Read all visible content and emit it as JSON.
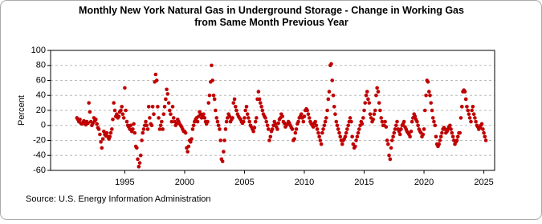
{
  "chart_data": {
    "type": "scatter",
    "title": "Monthly New York Natural Gas in Underground Storage - Change in Working Gas from Same Month Previous Year",
    "y_label": "Percent",
    "source": "Source: U.S. Energy Information Administration",
    "color": "#c00000",
    "grid": true,
    "xlim": [
      1988.8,
      2025.9
    ],
    "xticks": [
      1995,
      2000,
      2005,
      2010,
      2015,
      2020,
      2025
    ],
    "ylim": [
      -60,
      100
    ],
    "yticks": [
      -60,
      -40,
      -20,
      0,
      20,
      40,
      60,
      80,
      100
    ],
    "x": [
      1991,
      1991.08,
      1991.17,
      1991.25,
      1991.33,
      1991.42,
      1991.5,
      1991.58,
      1991.67,
      1991.75,
      1991.83,
      1991.92,
      1992,
      1992.08,
      1992.17,
      1992.25,
      1992.33,
      1992.42,
      1992.5,
      1992.58,
      1992.67,
      1992.75,
      1992.83,
      1992.92,
      1993,
      1993.08,
      1993.17,
      1993.25,
      1993.33,
      1993.42,
      1993.5,
      1993.58,
      1993.67,
      1993.75,
      1993.83,
      1993.92,
      1994,
      1994.08,
      1994.17,
      1994.25,
      1994.33,
      1994.42,
      1994.5,
      1994.58,
      1994.67,
      1994.75,
      1994.83,
      1994.92,
      1995,
      1995.08,
      1995.17,
      1995.25,
      1995.33,
      1995.42,
      1995.5,
      1995.58,
      1995.67,
      1995.75,
      1995.83,
      1995.92,
      1996,
      1996.08,
      1996.17,
      1996.25,
      1996.33,
      1996.42,
      1996.5,
      1996.58,
      1996.67,
      1996.75,
      1996.83,
      1996.92,
      1997,
      1997.08,
      1997.17,
      1997.25,
      1997.33,
      1997.42,
      1997.5,
      1997.58,
      1997.67,
      1997.75,
      1997.83,
      1997.92,
      1998,
      1998.08,
      1998.17,
      1998.25,
      1998.33,
      1998.42,
      1998.5,
      1998.58,
      1998.67,
      1998.75,
      1998.83,
      1998.92,
      1999,
      1999.08,
      1999.17,
      1999.25,
      1999.33,
      1999.42,
      1999.5,
      1999.58,
      1999.67,
      1999.75,
      1999.83,
      1999.92,
      2000,
      2000.08,
      2000.17,
      2000.25,
      2000.33,
      2000.42,
      2000.5,
      2000.58,
      2000.67,
      2000.75,
      2000.83,
      2000.92,
      2001,
      2001.08,
      2001.17,
      2001.25,
      2001.33,
      2001.42,
      2001.5,
      2001.58,
      2001.67,
      2001.75,
      2001.83,
      2001.92,
      2002,
      2002.08,
      2002.17,
      2002.25,
      2002.33,
      2002.42,
      2002.5,
      2002.58,
      2002.67,
      2002.75,
      2002.83,
      2002.92,
      2003,
      2003.08,
      2003.17,
      2003.25,
      2003.33,
      2003.42,
      2003.5,
      2003.58,
      2003.67,
      2003.75,
      2003.83,
      2003.92,
      2004,
      2004.08,
      2004.17,
      2004.25,
      2004.33,
      2004.42,
      2004.5,
      2004.58,
      2004.67,
      2004.75,
      2004.83,
      2004.92,
      2005,
      2005.08,
      2005.17,
      2005.25,
      2005.33,
      2005.42,
      2005.5,
      2005.58,
      2005.67,
      2005.75,
      2005.83,
      2005.92,
      2006,
      2006.08,
      2006.17,
      2006.25,
      2006.33,
      2006.42,
      2006.5,
      2006.58,
      2006.67,
      2006.75,
      2006.83,
      2006.92,
      2007,
      2007.08,
      2007.17,
      2007.25,
      2007.33,
      2007.42,
      2007.5,
      2007.58,
      2007.67,
      2007.75,
      2007.83,
      2007.92,
      2008,
      2008.08,
      2008.17,
      2008.25,
      2008.33,
      2008.42,
      2008.5,
      2008.58,
      2008.67,
      2008.75,
      2008.83,
      2008.92,
      2009,
      2009.08,
      2009.17,
      2009.25,
      2009.33,
      2009.42,
      2009.5,
      2009.58,
      2009.67,
      2009.75,
      2009.83,
      2009.92,
      2010,
      2010.08,
      2010.17,
      2010.25,
      2010.33,
      2010.42,
      2010.5,
      2010.58,
      2010.67,
      2010.75,
      2010.83,
      2010.92,
      2011,
      2011.08,
      2011.17,
      2011.25,
      2011.33,
      2011.42,
      2011.5,
      2011.58,
      2011.67,
      2011.75,
      2011.83,
      2011.92,
      2012,
      2012.08,
      2012.17,
      2012.25,
      2012.33,
      2012.42,
      2012.5,
      2012.58,
      2012.67,
      2012.75,
      2012.83,
      2012.92,
      2013,
      2013.08,
      2013.17,
      2013.25,
      2013.33,
      2013.42,
      2013.5,
      2013.58,
      2013.67,
      2013.75,
      2013.83,
      2013.92,
      2014,
      2014.08,
      2014.17,
      2014.25,
      2014.33,
      2014.42,
      2014.5,
      2014.58,
      2014.67,
      2014.75,
      2014.83,
      2014.92,
      2015,
      2015.08,
      2015.17,
      2015.25,
      2015.33,
      2015.42,
      2015.5,
      2015.58,
      2015.67,
      2015.75,
      2015.83,
      2015.92,
      2016,
      2016.08,
      2016.17,
      2016.25,
      2016.33,
      2016.42,
      2016.5,
      2016.58,
      2016.67,
      2016.75,
      2016.83,
      2016.92,
      2017,
      2017.08,
      2017.17,
      2017.25,
      2017.33,
      2017.42,
      2017.5,
      2017.58,
      2017.67,
      2017.75,
      2017.83,
      2017.92,
      2018,
      2018.08,
      2018.17,
      2018.25,
      2018.33,
      2018.42,
      2018.5,
      2018.58,
      2018.67,
      2018.75,
      2018.83,
      2018.92,
      2019,
      2019.08,
      2019.17,
      2019.25,
      2019.33,
      2019.42,
      2019.5,
      2019.58,
      2019.67,
      2019.75,
      2019.83,
      2019.92,
      2020,
      2020.08,
      2020.17,
      2020.25,
      2020.33,
      2020.42,
      2020.5,
      2020.58,
      2020.67,
      2020.75,
      2020.83,
      2020.92,
      2021,
      2021.08,
      2021.17,
      2021.25,
      2021.33,
      2021.42,
      2021.5,
      2021.58,
      2021.67,
      2021.75,
      2021.83,
      2021.92,
      2022,
      2022.08,
      2022.17,
      2022.25,
      2022.33,
      2022.42,
      2022.5,
      2022.58,
      2022.67,
      2022.75,
      2022.83,
      2022.92,
      2023,
      2023.08,
      2023.17,
      2023.25,
      2023.33,
      2023.42,
      2023.5,
      2023.58,
      2023.67,
      2023.75,
      2023.83,
      2023.92,
      2024,
      2024.08,
      2024.17,
      2024.25,
      2024.33,
      2024.42,
      2024.5,
      2024.58,
      2024.67,
      2024.75,
      2024.83,
      2024.92,
      2025,
      2025.08,
      2025.17
    ],
    "values": [
      10,
      8,
      5,
      8,
      3,
      2,
      4,
      6,
      2,
      1,
      5,
      3,
      30,
      18,
      5,
      0,
      3,
      10,
      6,
      8,
      2,
      -3,
      -5,
      -12,
      -22,
      -30,
      -18,
      -8,
      -12,
      -14,
      -10,
      -15,
      -18,
      -15,
      -10,
      -5,
      8,
      30,
      20,
      12,
      15,
      10,
      12,
      18,
      20,
      25,
      15,
      10,
      50,
      20,
      5,
      0,
      -2,
      -5,
      0,
      -8,
      -5,
      2,
      -10,
      -28,
      -30,
      -45,
      -55,
      -50,
      -40,
      -20,
      -10,
      -5,
      0,
      5,
      0,
      -5,
      25,
      10,
      2,
      0,
      25,
      15,
      58,
      68,
      60,
      25,
      10,
      -5,
      0,
      5,
      -5,
      15,
      25,
      35,
      48,
      42,
      30,
      20,
      15,
      5,
      25,
      10,
      5,
      0,
      3,
      8,
      5,
      2,
      0,
      -2,
      -5,
      -8,
      -8,
      -10,
      -30,
      -35,
      -28,
      -20,
      -22,
      -18,
      -5,
      0,
      5,
      8,
      10,
      5,
      12,
      18,
      15,
      10,
      12,
      15,
      10,
      5,
      2,
      5,
      30,
      40,
      58,
      80,
      60,
      40,
      35,
      20,
      10,
      5,
      0,
      -5,
      -20,
      -45,
      -48,
      -35,
      -20,
      -5,
      5,
      10,
      15,
      12,
      5,
      8,
      10,
      30,
      35,
      25,
      20,
      15,
      12,
      10,
      8,
      5,
      3,
      5,
      10,
      20,
      25,
      15,
      10,
      5,
      0,
      -2,
      -5,
      -8,
      -3,
      5,
      10,
      35,
      45,
      35,
      30,
      25,
      20,
      15,
      12,
      10,
      5,
      0,
      -5,
      -20,
      -15,
      -8,
      -5,
      0,
      5,
      2,
      -2,
      -5,
      3,
      8,
      10,
      15,
      12,
      5,
      3,
      -2,
      0,
      2,
      5,
      3,
      0,
      -3,
      -5,
      -20,
      -18,
      -10,
      -5,
      2,
      5,
      10,
      12,
      15,
      10,
      5,
      12,
      20,
      22,
      20,
      15,
      10,
      5,
      2,
      0,
      -2,
      3,
      5,
      0,
      -5,
      -10,
      -15,
      -20,
      -25,
      -10,
      -5,
      0,
      5,
      10,
      20,
      35,
      45,
      80,
      82,
      60,
      40,
      25,
      15,
      5,
      0,
      -5,
      -10,
      -15,
      -20,
      -25,
      -20,
      -18,
      -15,
      -10,
      -5,
      0,
      5,
      10,
      5,
      -15,
      -25,
      -30,
      -28,
      -20,
      -15,
      -10,
      -5,
      0,
      5,
      2,
      10,
      20,
      30,
      40,
      45,
      35,
      30,
      15,
      10,
      5,
      8,
      15,
      20,
      40,
      50,
      45,
      30,
      20,
      10,
      5,
      0,
      0,
      5,
      -2,
      -20,
      -25,
      -40,
      -45,
      -30,
      -20,
      -15,
      -10,
      -5,
      0,
      5,
      -5,
      -8,
      -12,
      -5,
      0,
      2,
      5,
      -2,
      -5,
      -8,
      -10,
      -12,
      -15,
      -8,
      5,
      10,
      15,
      12,
      8,
      5,
      0,
      -5,
      -8,
      -10,
      -15,
      -12,
      -5,
      20,
      40,
      60,
      58,
      45,
      40,
      30,
      20,
      10,
      5,
      0,
      -15,
      -25,
      -28,
      -25,
      -20,
      -15,
      -10,
      -5,
      -3,
      -5,
      -10,
      -8,
      -5,
      -2,
      0,
      -5,
      -10,
      -15,
      -20,
      -25,
      -22,
      -20,
      -15,
      -10,
      -10,
      10,
      25,
      45,
      47,
      45,
      35,
      25,
      20,
      15,
      10,
      5,
      20,
      25,
      15,
      10,
      5,
      0,
      -2,
      -5,
      -3,
      0,
      2,
      -5,
      -10,
      -15,
      -20
    ]
  }
}
